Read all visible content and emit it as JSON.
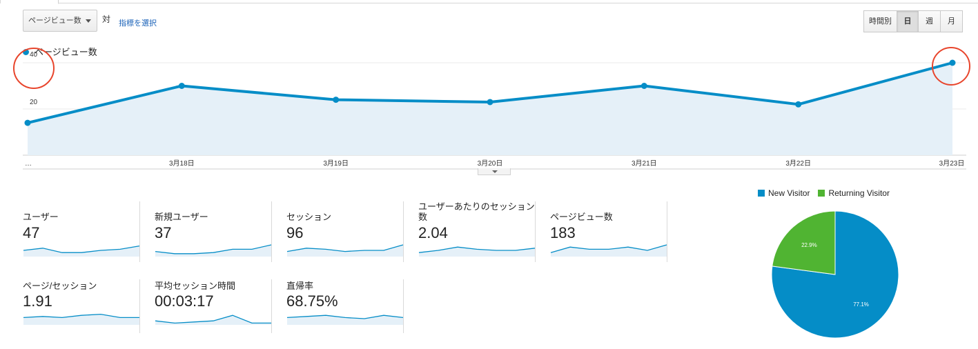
{
  "header": {
    "metric_select": "ページビュー数",
    "vs_label": "対",
    "select_metric_link": "指標を選択",
    "period_buttons": [
      {
        "label": "時間別",
        "active": false
      },
      {
        "label": "日",
        "active": true
      },
      {
        "label": "週",
        "active": false
      },
      {
        "label": "月",
        "active": false
      }
    ]
  },
  "chart_data": [
    {
      "type": "area",
      "legend": [
        "ページビュー数"
      ],
      "x": [
        "…",
        "3月18日",
        "3月19日",
        "3月20日",
        "3月21日",
        "3月22日",
        "3月23日"
      ],
      "series": [
        {
          "name": "ページビュー数",
          "values": [
            14,
            30,
            24,
            23,
            30,
            22,
            40
          ]
        }
      ],
      "y_ticks": [
        20,
        40
      ],
      "ylim": [
        0,
        40
      ],
      "color": "#058dc7",
      "fill": "#e5f0f8",
      "highlight_circles_on": [
        "40",
        "3月23日"
      ]
    },
    {
      "type": "pie",
      "legend": [
        "New Visitor",
        "Returning Visitor"
      ],
      "slices": [
        {
          "name": "New Visitor",
          "value": 77.1,
          "label": "77.1%",
          "color": "#058dc7"
        },
        {
          "name": "Returning Visitor",
          "value": 22.9,
          "label": "22.9%",
          "color": "#50b432"
        }
      ]
    }
  ],
  "metrics": [
    {
      "label": "ユーザー",
      "value": "47",
      "trend": [
        5,
        7,
        3,
        3,
        5,
        6,
        9
      ]
    },
    {
      "label": "新規ユーザー",
      "value": "37",
      "trend": [
        4,
        2,
        2,
        3,
        6,
        6,
        10
      ]
    },
    {
      "label": "セッション",
      "value": "96",
      "trend": [
        4,
        7,
        6,
        4,
        5,
        5,
        10
      ]
    },
    {
      "label": "ユーザーあたりのセッション数",
      "value": "2.04",
      "trend": [
        3,
        5,
        8,
        6,
        5,
        5,
        7
      ]
    },
    {
      "label": "ページビュー数",
      "value": "183",
      "trend": [
        3,
        8,
        6,
        6,
        8,
        5,
        10
      ]
    },
    {
      "label": "ページ/セッション",
      "value": "1.91",
      "trend": [
        6,
        7,
        6,
        8,
        9,
        6,
        6
      ]
    },
    {
      "label": "平均セッション時間",
      "value": "00:03:17",
      "trend": [
        3,
        1,
        2,
        3,
        8,
        1,
        1
      ]
    },
    {
      "label": "直帰率",
      "value": "68.75%",
      "trend": [
        6,
        7,
        8,
        6,
        5,
        8,
        6
      ]
    }
  ],
  "colors": {
    "accent": "#058dc7",
    "returning": "#50b432",
    "highlight": "#e8452c",
    "sparkline_fill": "#e5f0f8"
  }
}
